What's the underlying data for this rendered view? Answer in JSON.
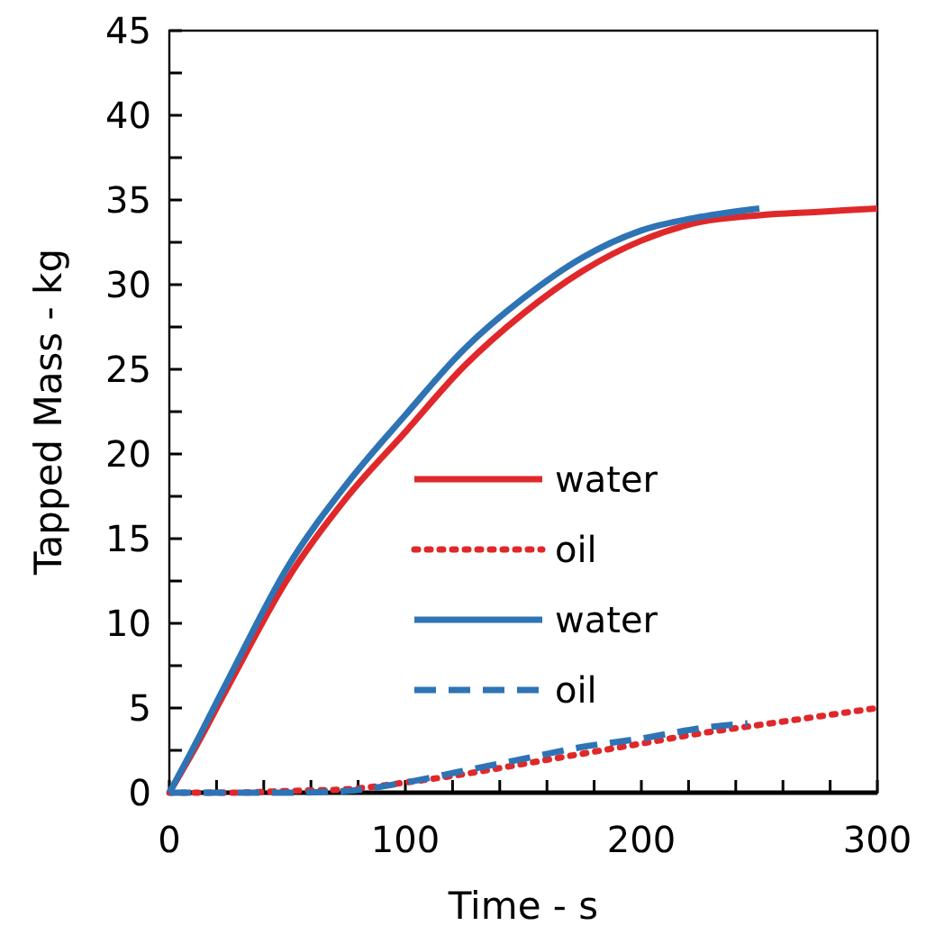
{
  "chart_data": {
    "type": "line",
    "xlabel": "Time - s",
    "ylabel": "Tapped Mass - kg",
    "xlim": [
      0,
      300
    ],
    "ylim": [
      0,
      45
    ],
    "xticks": [
      0,
      {
        "value": 20,
        "label": null
      },
      {
        "value": 40,
        "label": null
      },
      {
        "value": 60,
        "label": null
      },
      {
        "value": 80,
        "label": null
      },
      100,
      {
        "value": 120,
        "label": null
      },
      {
        "value": 140,
        "label": null
      },
      {
        "value": 160,
        "label": null
      },
      {
        "value": 180,
        "label": null
      },
      200,
      {
        "value": 220,
        "label": null
      },
      {
        "value": 240,
        "label": null
      },
      {
        "value": 260,
        "label": null
      },
      {
        "value": 280,
        "label": null
      },
      300
    ],
    "yticks": [
      0,
      {
        "value": 2.5,
        "label": null
      },
      5,
      {
        "value": 7.5,
        "label": null
      },
      10,
      {
        "value": 12.5,
        "label": null
      },
      15,
      {
        "value": 17.5,
        "label": null
      },
      20,
      {
        "value": 22.5,
        "label": null
      },
      25,
      {
        "value": 27.5,
        "label": null
      },
      30,
      {
        "value": 32.5,
        "label": null
      },
      35,
      {
        "value": 37.5,
        "label": null
      },
      40,
      {
        "value": 42.5,
        "label": null
      },
      45
    ],
    "grid": false,
    "legend": "right",
    "series": [
      {
        "name": "water",
        "color": "#e0282a",
        "line_style": "solid",
        "x": [
          0,
          10,
          25,
          50,
          75,
          100,
          125,
          150,
          175,
          200,
          225,
          250,
          275,
          300
        ],
        "values": [
          0,
          2.4,
          6.3,
          12.6,
          17.4,
          21.3,
          25.2,
          28.3,
          30.8,
          32.6,
          33.7,
          34.1,
          34.3,
          34.5
        ]
      },
      {
        "name": "oil",
        "color": "#e0282a",
        "line_style": "dotted",
        "x": [
          0,
          25,
          50,
          75,
          100,
          125,
          150,
          175,
          200,
          225,
          250,
          275,
          300
        ],
        "values": [
          0,
          0,
          0.1,
          0.2,
          0.6,
          1.1,
          1.7,
          2.3,
          2.9,
          3.5,
          4.0,
          4.5,
          5.0
        ]
      },
      {
        "name": "water",
        "color": "#2e74b5",
        "line_style": "solid",
        "x": [
          0,
          10,
          25,
          50,
          75,
          100,
          125,
          150,
          175,
          200,
          225,
          250
        ],
        "values": [
          0,
          2.6,
          6.7,
          13.3,
          18.2,
          22.3,
          26.2,
          29.2,
          31.6,
          33.2,
          34.0,
          34.5
        ]
      },
      {
        "name": "oil",
        "color": "#2e74b5",
        "line_style": "dashed",
        "x": [
          0,
          25,
          50,
          75,
          100,
          125,
          150,
          175,
          200,
          225,
          245
        ],
        "values": [
          0,
          0,
          0,
          0.1,
          0.6,
          1.3,
          2.0,
          2.7,
          3.2,
          3.8,
          4.1
        ]
      }
    ]
  }
}
